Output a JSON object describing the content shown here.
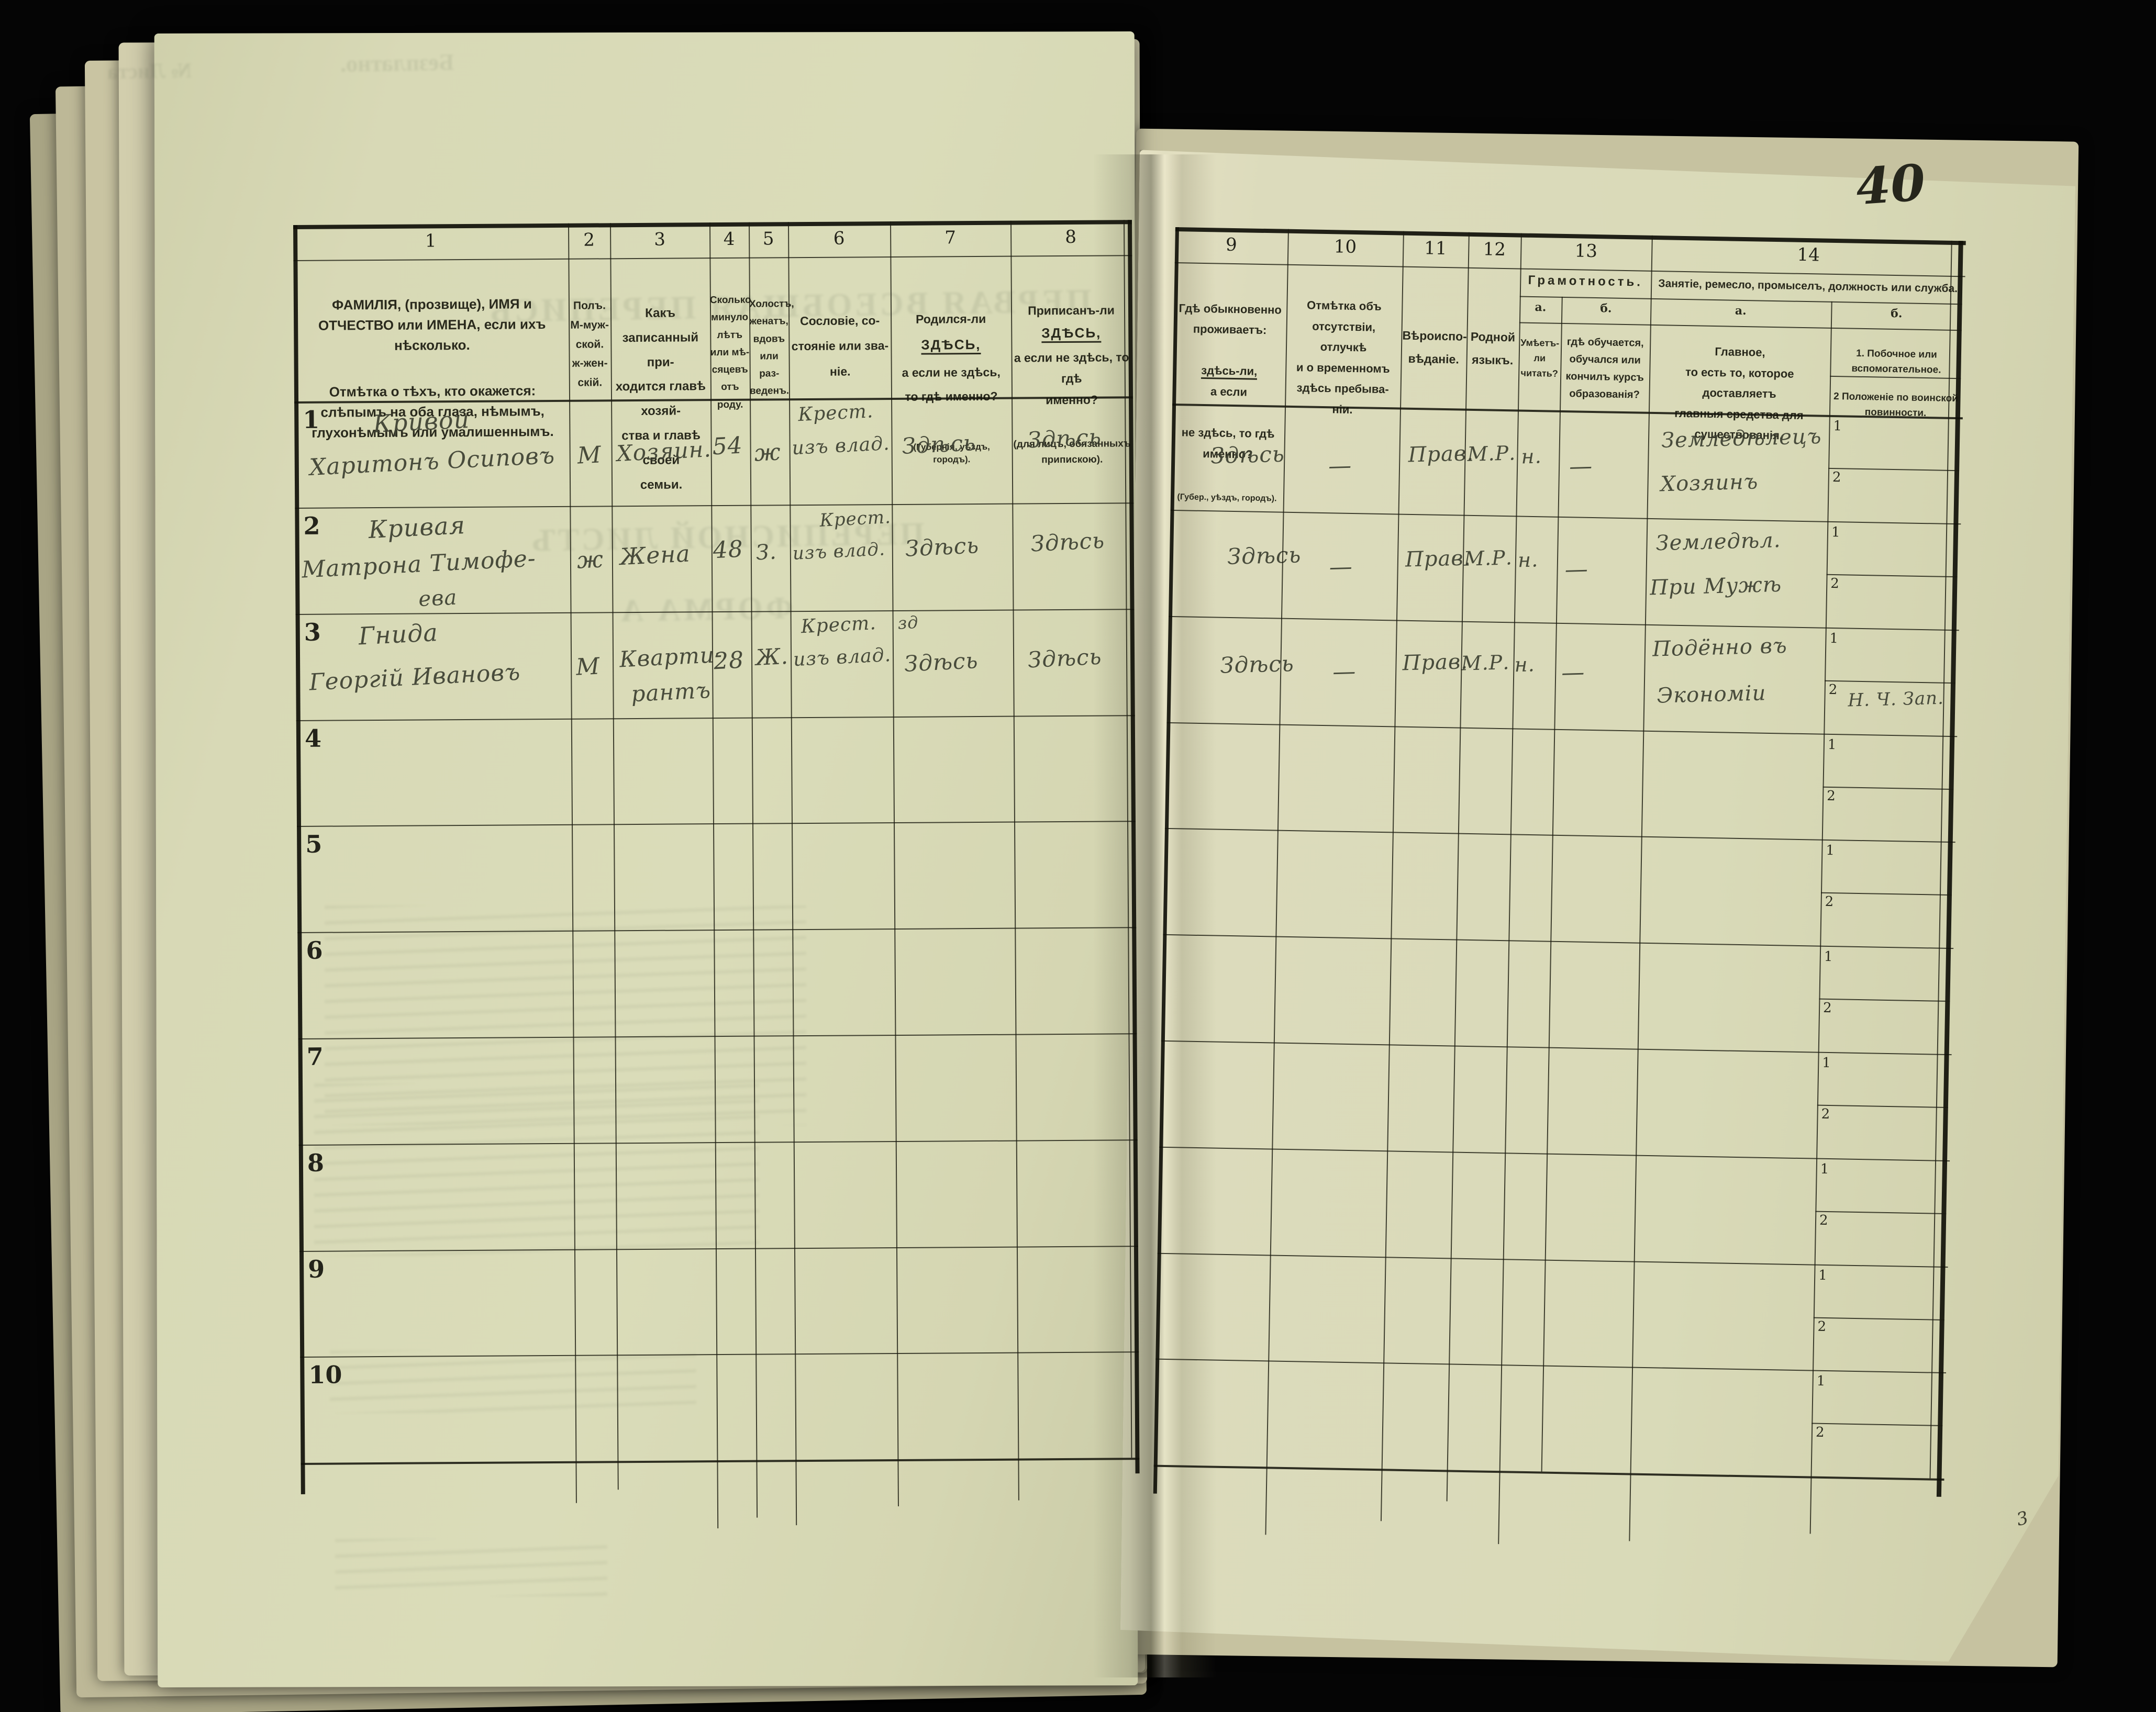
{
  "page": {
    "number": "40",
    "corner_mark": "3"
  },
  "ghosts": {
    "free": "Безплатно.",
    "sheet_no": "№ Листа",
    "census_title": "ПЕРВАЯ ВСЕОБЩАЯ ПЕРЕПИСЬ",
    "list_title": "ПЕРЕПИСНОЙ ЛИСТЪ",
    "form": "ФОРМА А"
  },
  "table": {
    "row_numbers": [
      "1",
      "2",
      "3",
      "4",
      "5",
      "6",
      "7",
      "8",
      "9",
      "10"
    ],
    "subrow_labels": [
      "1",
      "2"
    ],
    "columns": {
      "c1": {
        "num": "1",
        "p1": "ФАМИЛІЯ, (прозвище), ИМЯ и ОТЧЕСТВО или ИМЕНА, если ихъ нѣсколько.",
        "p2": "Отмѣтка о тѣхъ, кто окажется: слѣпымъ на оба глаза, нѣмымъ, глухонѣмымъ или умалишеннымъ."
      },
      "c2": {
        "num": "2",
        "text": "Полъ.\nМ-муж-\nской.\nж-жен-\nскій."
      },
      "c3": {
        "num": "3",
        "text": "Какъ записанный при-\nходится главѣ хозяй-\nства и главѣ своей\nсемьи."
      },
      "c4": {
        "num": "4",
        "text": "Сколько\nминуло\nлѣтъ\nили мѣ-\nсяцевъ\nотъ роду."
      },
      "c5": {
        "num": "5",
        "text": "Холостъ,\nженатъ,\nвдовъ\nили раз-\nведенъ."
      },
      "c6": {
        "num": "6",
        "text": "Сословіе, со-\nстояніе или зва-\nніе."
      },
      "c7": {
        "num": "7",
        "lead": "Родился-ли",
        "emph": "ЗДѢСЬ,",
        "rest": "а если не здѣсь,\nто гдѣ именно?",
        "sub": "(Губернія, уѣздъ, городъ)."
      },
      "c8": {
        "num": "8",
        "lead": "Приписанъ-ли",
        "emph": "ЗДѢСЬ,",
        "rest": "а если не здѣсь, то гдѣ\nименно?",
        "sub": "(для лицъ, обязанныхъ\nприпискою)."
      },
      "c9": {
        "num": "9",
        "l1": "Гдѣ обыкновенно\nпроживаетъ:",
        "emph": "здѣсь-ли,",
        "l2": "а если",
        "rest": "не здѣсь, то гдѣ\nименно?",
        "sub": "(Губер., уѣздъ, городъ)."
      },
      "c10": {
        "num": "10",
        "text": "Отмѣтка объ\nотсутствіи, отлучкѣ\nи о временномъ\nздѣсь пребыва-\nніи."
      },
      "c11": {
        "num": "11",
        "text": "Вѣроиспо-\nвѣданіе."
      },
      "c12": {
        "num": "12",
        "text": "Родной\nязыкъ."
      },
      "c13": {
        "num": "13",
        "title": "Грамотность.",
        "a_label": "а.",
        "b_label": "б.",
        "a_text": "Умѣетъ-\nли\nчитать?",
        "b_text": "гдѣ обучается,\nобучался или\nкончилъ курсъ\nобразованія?"
      },
      "c14": {
        "num": "14",
        "title": "Занятіе, ремесло, промыселъ, должность или служба.",
        "a_label": "а.",
        "b_label": "б.",
        "a_text": "Главное,\nто есть то, которое доставляетъ\nглавныя средства для существованія.",
        "b_item1": "1. Побочное или вспомогательное.",
        "b_item2": "2 Положеніе по воинской повинности."
      }
    },
    "entries": [
      {
        "name_l1": "Кривой",
        "name_l2": "Харитонъ Осиповъ",
        "sex": "М",
        "relation": "Хозяин.",
        "age": "54",
        "marital": "ж",
        "estate_l1": "Крест.",
        "estate_l2": "изъ влад.",
        "born": "Здѣсь",
        "registered": "Здѣсь",
        "residence": "Здѣсь",
        "absence": "—",
        "religion": "Прав.",
        "language": "М.Р.",
        "literate": "н.",
        "education": "—",
        "occupation_l1": "Земледѣлецъ",
        "occupation_l2": "Хозяинъ"
      },
      {
        "name_l1": "Кривая",
        "name_l2": "Матрона Тимофе-",
        "name_l3": "ева",
        "sex": "ж",
        "relation": "Жена",
        "age": "48",
        "marital": "З.",
        "estate_l1": "Крест.",
        "estate_l2": "изъ влад.",
        "born": "Здѣсь",
        "registered": "Здѣсь",
        "residence": "Здѣсь",
        "absence": "—",
        "religion": "Прав.",
        "language": "М.Р.",
        "literate": "н.",
        "education": "—",
        "occupation_l1": "Земледѣл.",
        "occupation_l2": "При Мужѣ"
      },
      {
        "name_l1": "Гнида",
        "name_l2": "Георгій Ивановъ",
        "sex": "М",
        "relation_l1": "Кварти-",
        "relation_l2": "рантъ",
        "age": "28",
        "marital": "Ж.",
        "estate_l1": "Крест.",
        "estate_l2": "изъ влад.",
        "born_note": "зд",
        "born": "Здѣсь",
        "registered": "Здѣсь",
        "residence": "Здѣсь",
        "absence": "—",
        "religion": "Прав.",
        "language": "М.Р.",
        "literate": "н.",
        "education": "—",
        "occupation_l1": "Подённо въ",
        "occupation_l2": "Экономіи",
        "military": "Н. Ч. Зап."
      }
    ]
  }
}
